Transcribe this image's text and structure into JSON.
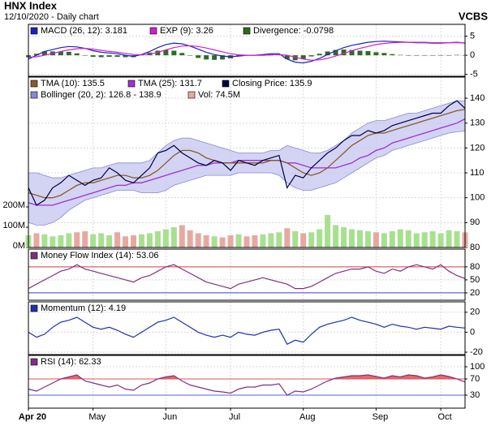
{
  "header": {
    "title": "HNX Index",
    "subtitle": "12/10/2020 - Daily chart",
    "source": "VCBS"
  },
  "x_axis": {
    "xlim": [
      0,
      54
    ],
    "xticks": [
      {
        "value": 0,
        "label": "Apr 20"
      },
      {
        "value": 8,
        "label": "May"
      },
      {
        "value": 17,
        "label": "Jun"
      },
      {
        "value": 25,
        "label": "Jul"
      },
      {
        "value": 34,
        "label": "Aug"
      },
      {
        "value": 43,
        "label": "Sep"
      },
      {
        "value": 51,
        "label": "Oct"
      }
    ],
    "grid": true
  },
  "chart_data": [
    {
      "type": "macd",
      "ylim": [
        -5.5,
        8.1
      ],
      "yticks": [
        5,
        0,
        -5
      ],
      "grid": true,
      "series": [
        {
          "name": "MACD (26, 12): 3.181",
          "color": "#2020c0",
          "style": "line",
          "values": [
            -1,
            0,
            1,
            1.5,
            2,
            2.3,
            2.2,
            1.8,
            1.2,
            0.8,
            0.6,
            0.4,
            0,
            -0.3,
            0.2,
            1,
            2,
            2.8,
            3.2,
            3,
            2.4,
            1.6,
            0.8,
            0.2,
            -0.2,
            -0.4,
            -0.2,
            0,
            0,
            0.2,
            0.4,
            0.4,
            -1,
            -1.8,
            -2,
            -1.6,
            -0.8,
            0.2,
            1.2,
            2,
            2.6,
            3,
            3.4,
            3.6,
            3.7,
            3.6,
            3.5,
            3.4,
            3.3,
            3.3,
            3.2,
            3.2,
            3.3,
            3.4,
            3.181
          ]
        },
        {
          "name": "EXP (9): 3.26",
          "color": "#d020d0",
          "style": "line",
          "values": [
            -0.5,
            -0.4,
            0,
            0.5,
            1,
            1.4,
            1.7,
            1.8,
            1.6,
            1.3,
            1,
            0.8,
            0.5,
            0.2,
            0.1,
            0.3,
            0.8,
            1.4,
            2,
            2.4,
            2.5,
            2.3,
            1.9,
            1.4,
            0.9,
            0.4,
            0.1,
            0,
            0,
            0,
            0.1,
            0.2,
            0,
            -0.5,
            -1,
            -1.3,
            -1.2,
            -0.8,
            -0.2,
            0.5,
            1.2,
            1.8,
            2.3,
            2.8,
            3.1,
            3.3,
            3.4,
            3.4,
            3.4,
            3.4,
            3.3,
            3.3,
            3.3,
            3.3,
            3.26
          ]
        },
        {
          "name": "Divergence: -0.0798",
          "color": "#2e6b22",
          "style": "bar",
          "values": [
            -0.5,
            0.4,
            1,
            1,
            1,
            0.9,
            0.5,
            0,
            -0.4,
            -0.5,
            -0.4,
            -0.4,
            -0.5,
            -0.5,
            0.1,
            0.7,
            1.2,
            1.4,
            1.2,
            0.6,
            -0.1,
            -0.7,
            -1.1,
            -1.2,
            -1.1,
            -0.8,
            -0.3,
            0,
            0,
            0.2,
            0.3,
            0.2,
            -1,
            -1.3,
            -1,
            -0.3,
            0.4,
            1,
            1.4,
            1.5,
            1.4,
            1.2,
            1.1,
            0.8,
            0.6,
            0.3,
            0.1,
            0,
            -0.1,
            -0.1,
            -0.1,
            -0.1,
            0,
            0.1,
            -0.0798
          ]
        }
      ]
    },
    {
      "type": "price",
      "ylim": [
        80,
        148.5
      ],
      "yticks": [
        140,
        130,
        120,
        110,
        100,
        90,
        80
      ],
      "y2lim": [
        0,
        840
      ],
      "y2ticks": [
        {
          "value": 200,
          "label": "200M"
        },
        {
          "value": 100,
          "label": "100M"
        },
        {
          "value": 0,
          "label": "0M"
        }
      ],
      "grid": true,
      "series": [
        {
          "name": "TMA (10): 135.5",
          "color": "#8b5a2b",
          "style": "line",
          "values": [
            102,
            101,
            100,
            100,
            101,
            103,
            105,
            106,
            106,
            107,
            108,
            109,
            109,
            108,
            108,
            109,
            111,
            114,
            117,
            119,
            119,
            118,
            116,
            115,
            114,
            114,
            114,
            114,
            114,
            114,
            115,
            115,
            114,
            112,
            110,
            109,
            110,
            112,
            115,
            118,
            121,
            123,
            125,
            126,
            126,
            127,
            128,
            129,
            130,
            131,
            132,
            133,
            134,
            135,
            135.5
          ]
        },
        {
          "name": "TMA (25): 131.7",
          "color": "#a030d0",
          "style": "line",
          "values": [
            98,
            97,
            97,
            97,
            98,
            99,
            100,
            101,
            102,
            103,
            104,
            105,
            105,
            106,
            106,
            107,
            108,
            109,
            110,
            111,
            112,
            113,
            113,
            114,
            114,
            114,
            115,
            115,
            115,
            115,
            115,
            115,
            114,
            114,
            113,
            112,
            112,
            112,
            112,
            113,
            114,
            116,
            117,
            119,
            120,
            122,
            123,
            124,
            125,
            126,
            127,
            128,
            129,
            130,
            131.7
          ]
        },
        {
          "name": "Closing Price: 135.9",
          "color": "#000040",
          "style": "line",
          "values": [
            104,
            97,
            99,
            104,
            106,
            109,
            107,
            105,
            107,
            108,
            112,
            110,
            107,
            106,
            109,
            112,
            118,
            119,
            121,
            118,
            116,
            114,
            113,
            115,
            114,
            111,
            115,
            114,
            113,
            115,
            116,
            117,
            104,
            109,
            108,
            112,
            115,
            118,
            120,
            123,
            125,
            125,
            127,
            126,
            127,
            129,
            130,
            131,
            132,
            133,
            134,
            134,
            137,
            139,
            135.9
          ]
        },
        {
          "name": "Bollinger (20, 2): 126.8 - 138.9",
          "color": "#c4c4f0",
          "edge_color": "#8888d8",
          "style": "band",
          "upper": [
            110,
            110,
            109,
            108,
            108,
            109,
            110,
            111,
            112,
            112,
            113,
            114,
            114,
            114,
            114,
            115,
            118,
            121,
            123,
            124,
            124,
            123,
            122,
            121,
            120,
            119,
            118,
            118,
            118,
            118,
            119,
            119,
            121,
            120,
            119,
            118,
            118,
            119,
            121,
            123,
            126,
            128,
            130,
            131,
            131,
            132,
            133,
            134,
            134,
            135,
            136,
            137,
            138,
            139,
            138.9
          ],
          "lower": [
            90,
            89,
            89,
            90,
            92,
            95,
            97,
            99,
            100,
            101,
            102,
            103,
            103,
            103,
            102,
            102,
            102,
            103,
            105,
            106,
            107,
            108,
            109,
            109,
            109,
            109,
            110,
            110,
            110,
            110,
            110,
            109,
            106,
            104,
            103,
            103,
            104,
            105,
            106,
            108,
            110,
            112,
            114,
            116,
            117,
            119,
            120,
            121,
            122,
            123,
            124,
            125,
            126,
            126.5,
            126.8
          ]
        },
        {
          "name": "Vol: 74.5M",
          "color": "#e8a8a0",
          "up_color": "#a8e090",
          "style": "volume",
          "axis": "y2",
          "values": [
            60,
            70,
            65,
            55,
            60,
            70,
            75,
            80,
            65,
            70,
            60,
            75,
            55,
            60,
            65,
            70,
            80,
            90,
            100,
            110,
            85,
            70,
            60,
            55,
            50,
            60,
            65,
            55,
            60,
            65,
            70,
            75,
            95,
            80,
            70,
            75,
            90,
            160,
            110,
            100,
            90,
            85,
            80,
            75,
            70,
            80,
            90,
            85,
            70,
            75,
            80,
            70,
            85,
            80,
            74.5
          ]
        }
      ]
    },
    {
      "type": "line",
      "ylim": [
        3,
        121
      ],
      "yticks": [
        80,
        50,
        20
      ],
      "grid": true,
      "levels": [
        80,
        20
      ],
      "level_colors": [
        "#d04040",
        "#4040d0"
      ],
      "series": [
        {
          "name": "Money Flow Index (14): 53.06",
          "color": "#803080",
          "style": "line",
          "values": [
            30,
            40,
            50,
            60,
            70,
            75,
            85,
            75,
            70,
            65,
            60,
            55,
            50,
            45,
            55,
            60,
            70,
            80,
            85,
            75,
            65,
            55,
            45,
            40,
            35,
            30,
            40,
            45,
            50,
            55,
            50,
            45,
            40,
            30,
            30,
            35,
            45,
            55,
            65,
            70,
            75,
            75,
            80,
            70,
            65,
            75,
            70,
            80,
            85,
            80,
            75,
            85,
            70,
            60,
            53.06
          ]
        }
      ]
    },
    {
      "type": "line",
      "ylim": [
        -22.4,
        30.4
      ],
      "yticks": [
        20,
        0,
        -20
      ],
      "grid": true,
      "series": [
        {
          "name": "Momentum (12): 4.19",
          "color": "#2030b0",
          "style": "line",
          "values": [
            0,
            -5,
            -2,
            5,
            10,
            12,
            15,
            10,
            5,
            3,
            5,
            2,
            -2,
            -5,
            0,
            5,
            10,
            12,
            15,
            10,
            5,
            0,
            -3,
            -5,
            -3,
            -5,
            0,
            -2,
            -3,
            0,
            2,
            3,
            -12,
            -8,
            -10,
            -2,
            5,
            8,
            10,
            12,
            15,
            12,
            10,
            8,
            5,
            8,
            6,
            5,
            3,
            5,
            4,
            3,
            6,
            5,
            4.19
          ]
        }
      ]
    },
    {
      "type": "rsi",
      "ylim": [
        -2,
        128
      ],
      "yticks": [
        100,
        70,
        30
      ],
      "grid": true,
      "levels": [
        70,
        30
      ],
      "level_colors": [
        "#e05050",
        "#5060e0"
      ],
      "series": [
        {
          "name": "RSI (14): 62.33",
          "color": "#803080",
          "style": "line",
          "values": [
            45,
            40,
            50,
            60,
            70,
            75,
            80,
            65,
            60,
            55,
            50,
            55,
            45,
            42,
            55,
            60,
            70,
            75,
            78,
            65,
            55,
            50,
            45,
            40,
            38,
            35,
            45,
            50,
            50,
            55,
            55,
            58,
            30,
            40,
            38,
            45,
            55,
            65,
            72,
            75,
            78,
            78,
            80,
            76,
            72,
            78,
            75,
            80,
            78,
            72,
            75,
            80,
            76,
            70,
            62.33
          ]
        }
      ]
    }
  ]
}
